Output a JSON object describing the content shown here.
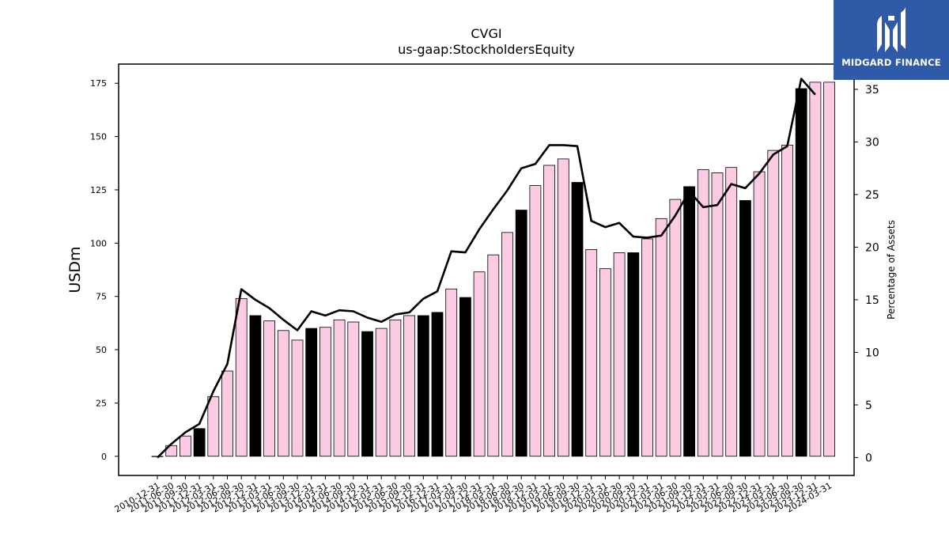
{
  "chart_data": {
    "type": "bar",
    "title": "CVGI",
    "subtitle": "us-gaap:StockholdersEquity",
    "ylabel": "USDm",
    "y2label": "Percentage of Assets",
    "ylim": [
      -9,
      184
    ],
    "y2lim": [
      -1.7,
      37.4
    ],
    "yticks": [
      0,
      25,
      50,
      75,
      100,
      125,
      150,
      175
    ],
    "y2ticks": [
      0,
      5,
      10,
      15,
      20,
      25,
      30,
      35
    ],
    "categories": [
      "2010-12-31",
      "2011-06-30",
      "2011-09-30",
      "2011-12-31",
      "2012-03-31",
      "2012-06-30",
      "2012-09-30",
      "2012-12-31",
      "2013-03-31",
      "2013-06-30",
      "2013-09-30",
      "2013-12-31",
      "2014-03-31",
      "2014-06-30",
      "2014-09-30",
      "2014-12-31",
      "2015-03-31",
      "2015-06-30",
      "2015-09-30",
      "2015-12-31",
      "2016-12-31",
      "2017-03-31",
      "2017-09-30",
      "2017-12-31",
      "2018-03-31",
      "2018-06-30",
      "2018-09-30",
      "2018-12-31",
      "2019-03-31",
      "2019-06-30",
      "2019-09-30",
      "2019-12-31",
      "2020-03-31",
      "2020-06-30",
      "2020-09-30",
      "2020-12-31",
      "2021-03-31",
      "2021-06-30",
      "2021-09-30",
      "2021-12-31",
      "2022-03-31",
      "2022-06-30",
      "2022-09-30",
      "2022-12-31",
      "2023-03-31",
      "2023-06-30",
      "2023-09-30",
      "2023-12-31",
      "2024-03-31"
    ],
    "series": [
      {
        "type": "bar",
        "values": [
          0,
          5,
          9.5,
          13,
          28,
          40,
          74,
          66,
          63.5,
          59,
          54.5,
          60,
          60.5,
          64,
          63,
          58.5,
          60,
          64,
          66,
          66,
          67.5,
          78.5,
          74.5,
          86.5,
          94.5,
          105,
          115.5,
          127,
          136.5,
          139.5,
          128.5,
          97,
          88,
          95.5,
          95.5,
          102,
          111.5,
          120.5,
          126.5,
          134.5,
          133,
          135.5,
          120,
          133.5,
          143.5,
          146,
          172.5,
          175.5,
          175.5
        ],
        "highlight": [
          false,
          false,
          false,
          true,
          false,
          false,
          false,
          true,
          false,
          false,
          false,
          true,
          false,
          false,
          false,
          true,
          false,
          false,
          false,
          true,
          true,
          false,
          true,
          false,
          false,
          false,
          true,
          false,
          false,
          false,
          true,
          false,
          false,
          false,
          true,
          false,
          false,
          false,
          true,
          false,
          false,
          false,
          true,
          false,
          false,
          false,
          true,
          false,
          false
        ],
        "colors": {
          "normal": "#fbcbe3",
          "highlight": "#000000",
          "edge": "#000000"
        }
      },
      {
        "type": "line",
        "axis": "right",
        "color": "#000000",
        "values": [
          0,
          1.3,
          2.4,
          3.2,
          6.3,
          8.9,
          16.0,
          15.0,
          14.2,
          13.1,
          12.1,
          13.9,
          13.5,
          14.0,
          13.9,
          13.3,
          12.9,
          13.6,
          13.8,
          15.1,
          15.8,
          19.6,
          19.5,
          21.7,
          23.6,
          25.4,
          27.5,
          27.9,
          29.7,
          29.7,
          29.6,
          22.5,
          21.9,
          22.3,
          21.0,
          20.9,
          21.1,
          23.0,
          25.3,
          23.8,
          24.0,
          26.0,
          25.6,
          27.0,
          28.8,
          29.6,
          36.0,
          34.5,
          null
        ]
      }
    ],
    "grid": false,
    "legend": "none"
  },
  "logo": {
    "text": "MIDGARD FINANCE",
    "icon": "midgard-finance-logo-mark-icon",
    "background": "#2e5aa8",
    "color": "#ffffff"
  }
}
